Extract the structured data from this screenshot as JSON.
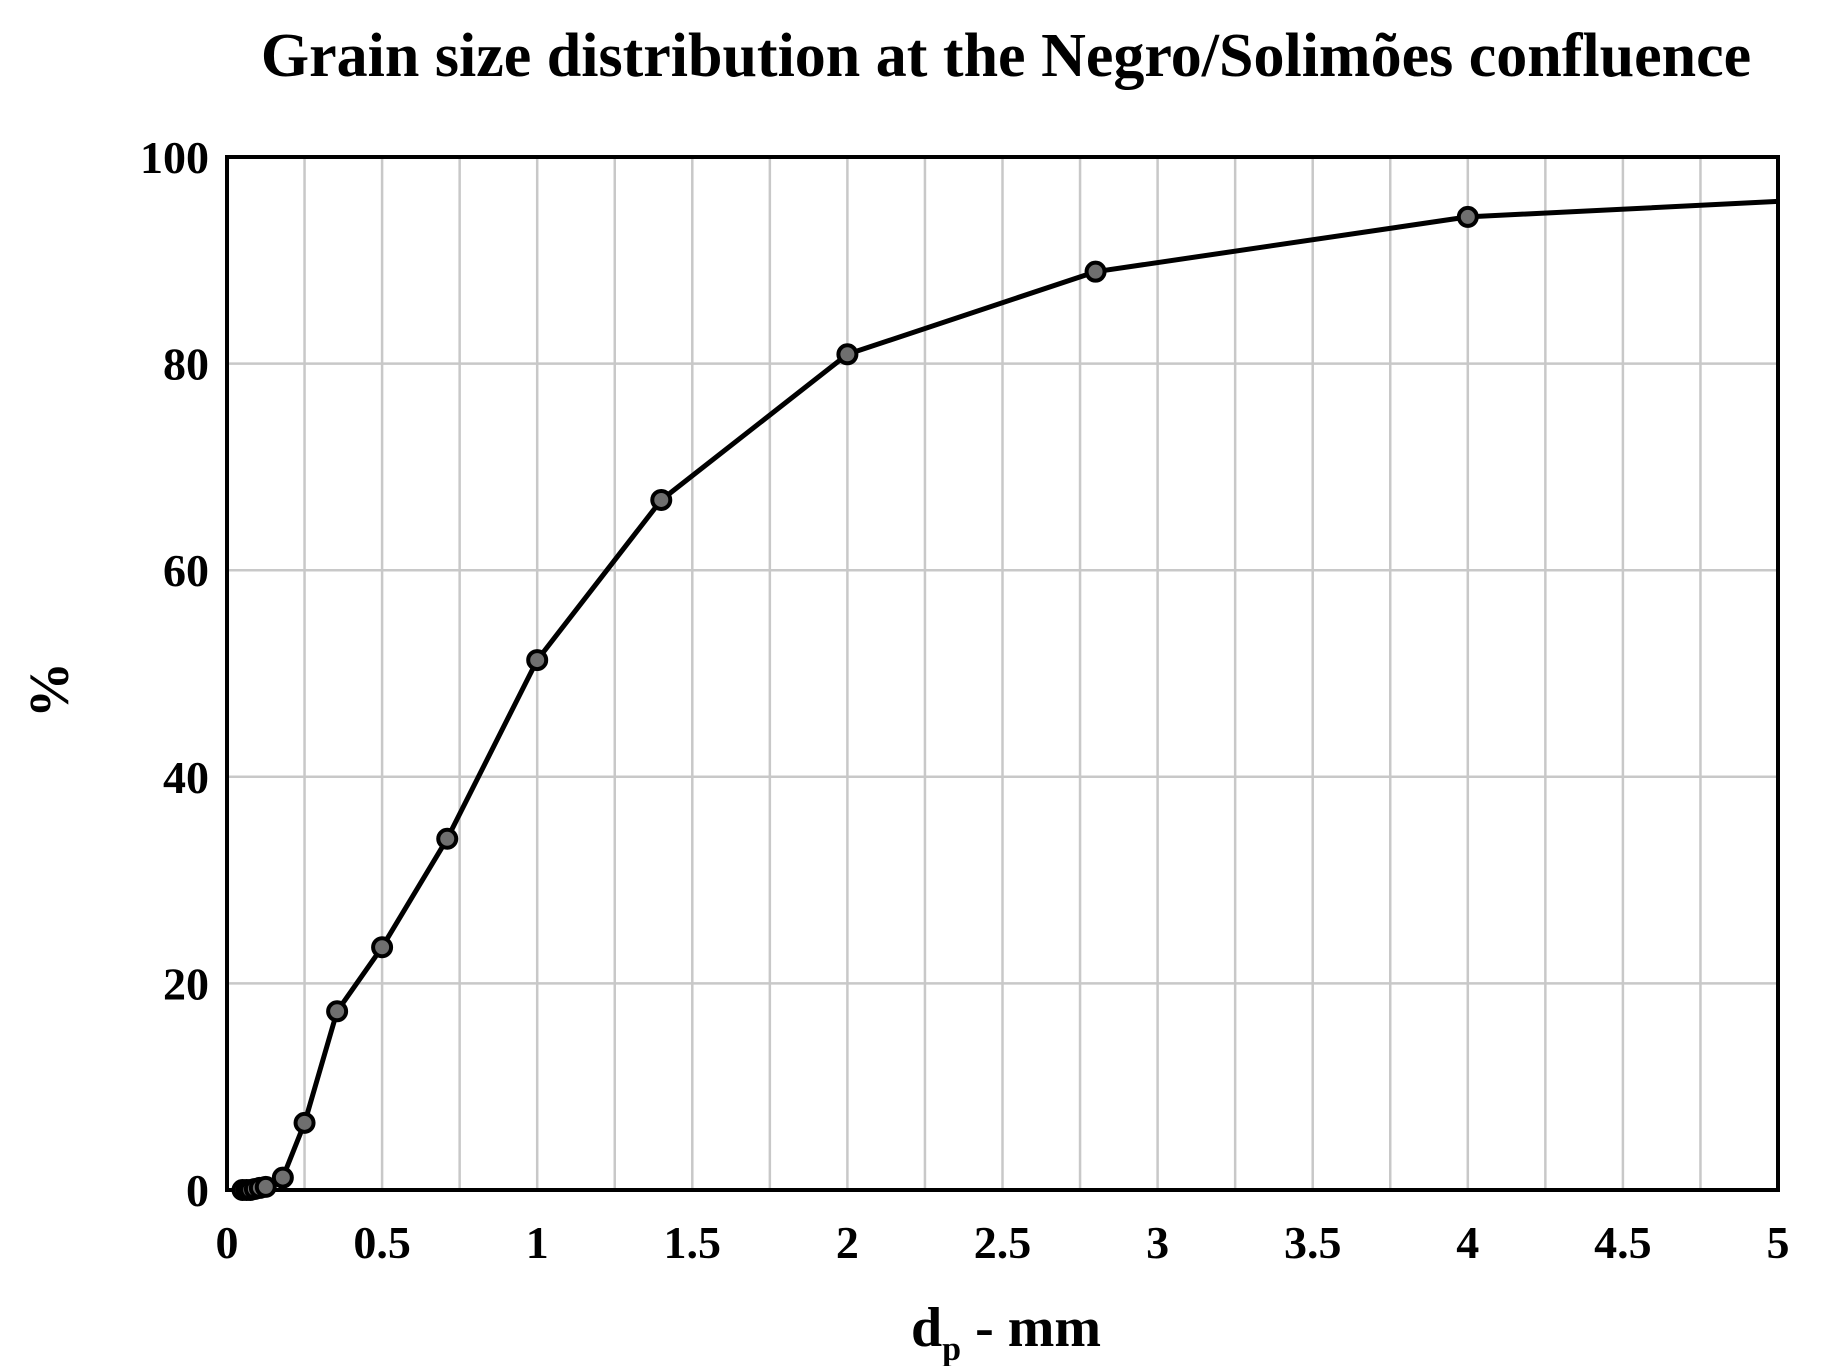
{
  "chart_data": {
    "type": "line",
    "title": "Grain size distribution at the Negro/Solimões confluence",
    "xlabel_main": "d",
    "xlabel_subscript": "p",
    "xlabel_suffix": " - mm",
    "ylabel": "%",
    "xlim": [
      0,
      5
    ],
    "ylim": [
      0,
      100
    ],
    "x_ticks": [
      0,
      0.5,
      1,
      1.5,
      2,
      2.5,
      3,
      3.5,
      4,
      4.5,
      5
    ],
    "x_tick_labels": [
      "0",
      "0.5",
      "1",
      "1.5",
      "2",
      "2.5",
      "3",
      "3.5",
      "4",
      "4.5",
      "5"
    ],
    "y_ticks": [
      0,
      20,
      40,
      60,
      80,
      100
    ],
    "y_tick_labels": [
      "0",
      "20",
      "40",
      "60",
      "80",
      "100"
    ],
    "x_minor_grid_step": 0.25,
    "y_minor_grid_step": 20,
    "grid": true,
    "legend": false,
    "series": [
      {
        "x": [
          0.05,
          0.063,
          0.075,
          0.09,
          0.106,
          0.125,
          0.18,
          0.25,
          0.355,
          0.5,
          0.71,
          1.0,
          1.4,
          2.0,
          2.8,
          4.0
        ],
        "y": [
          0,
          0,
          0,
          0.1,
          0.2,
          0.3,
          1.2,
          6.5,
          17.3,
          23.5,
          34.0,
          51.3,
          66.8,
          80.9,
          88.9,
          94.2
        ],
        "line_end": {
          "x": 5.0,
          "y": 95.7
        },
        "color": "#000000",
        "marker": "circle"
      }
    ]
  }
}
